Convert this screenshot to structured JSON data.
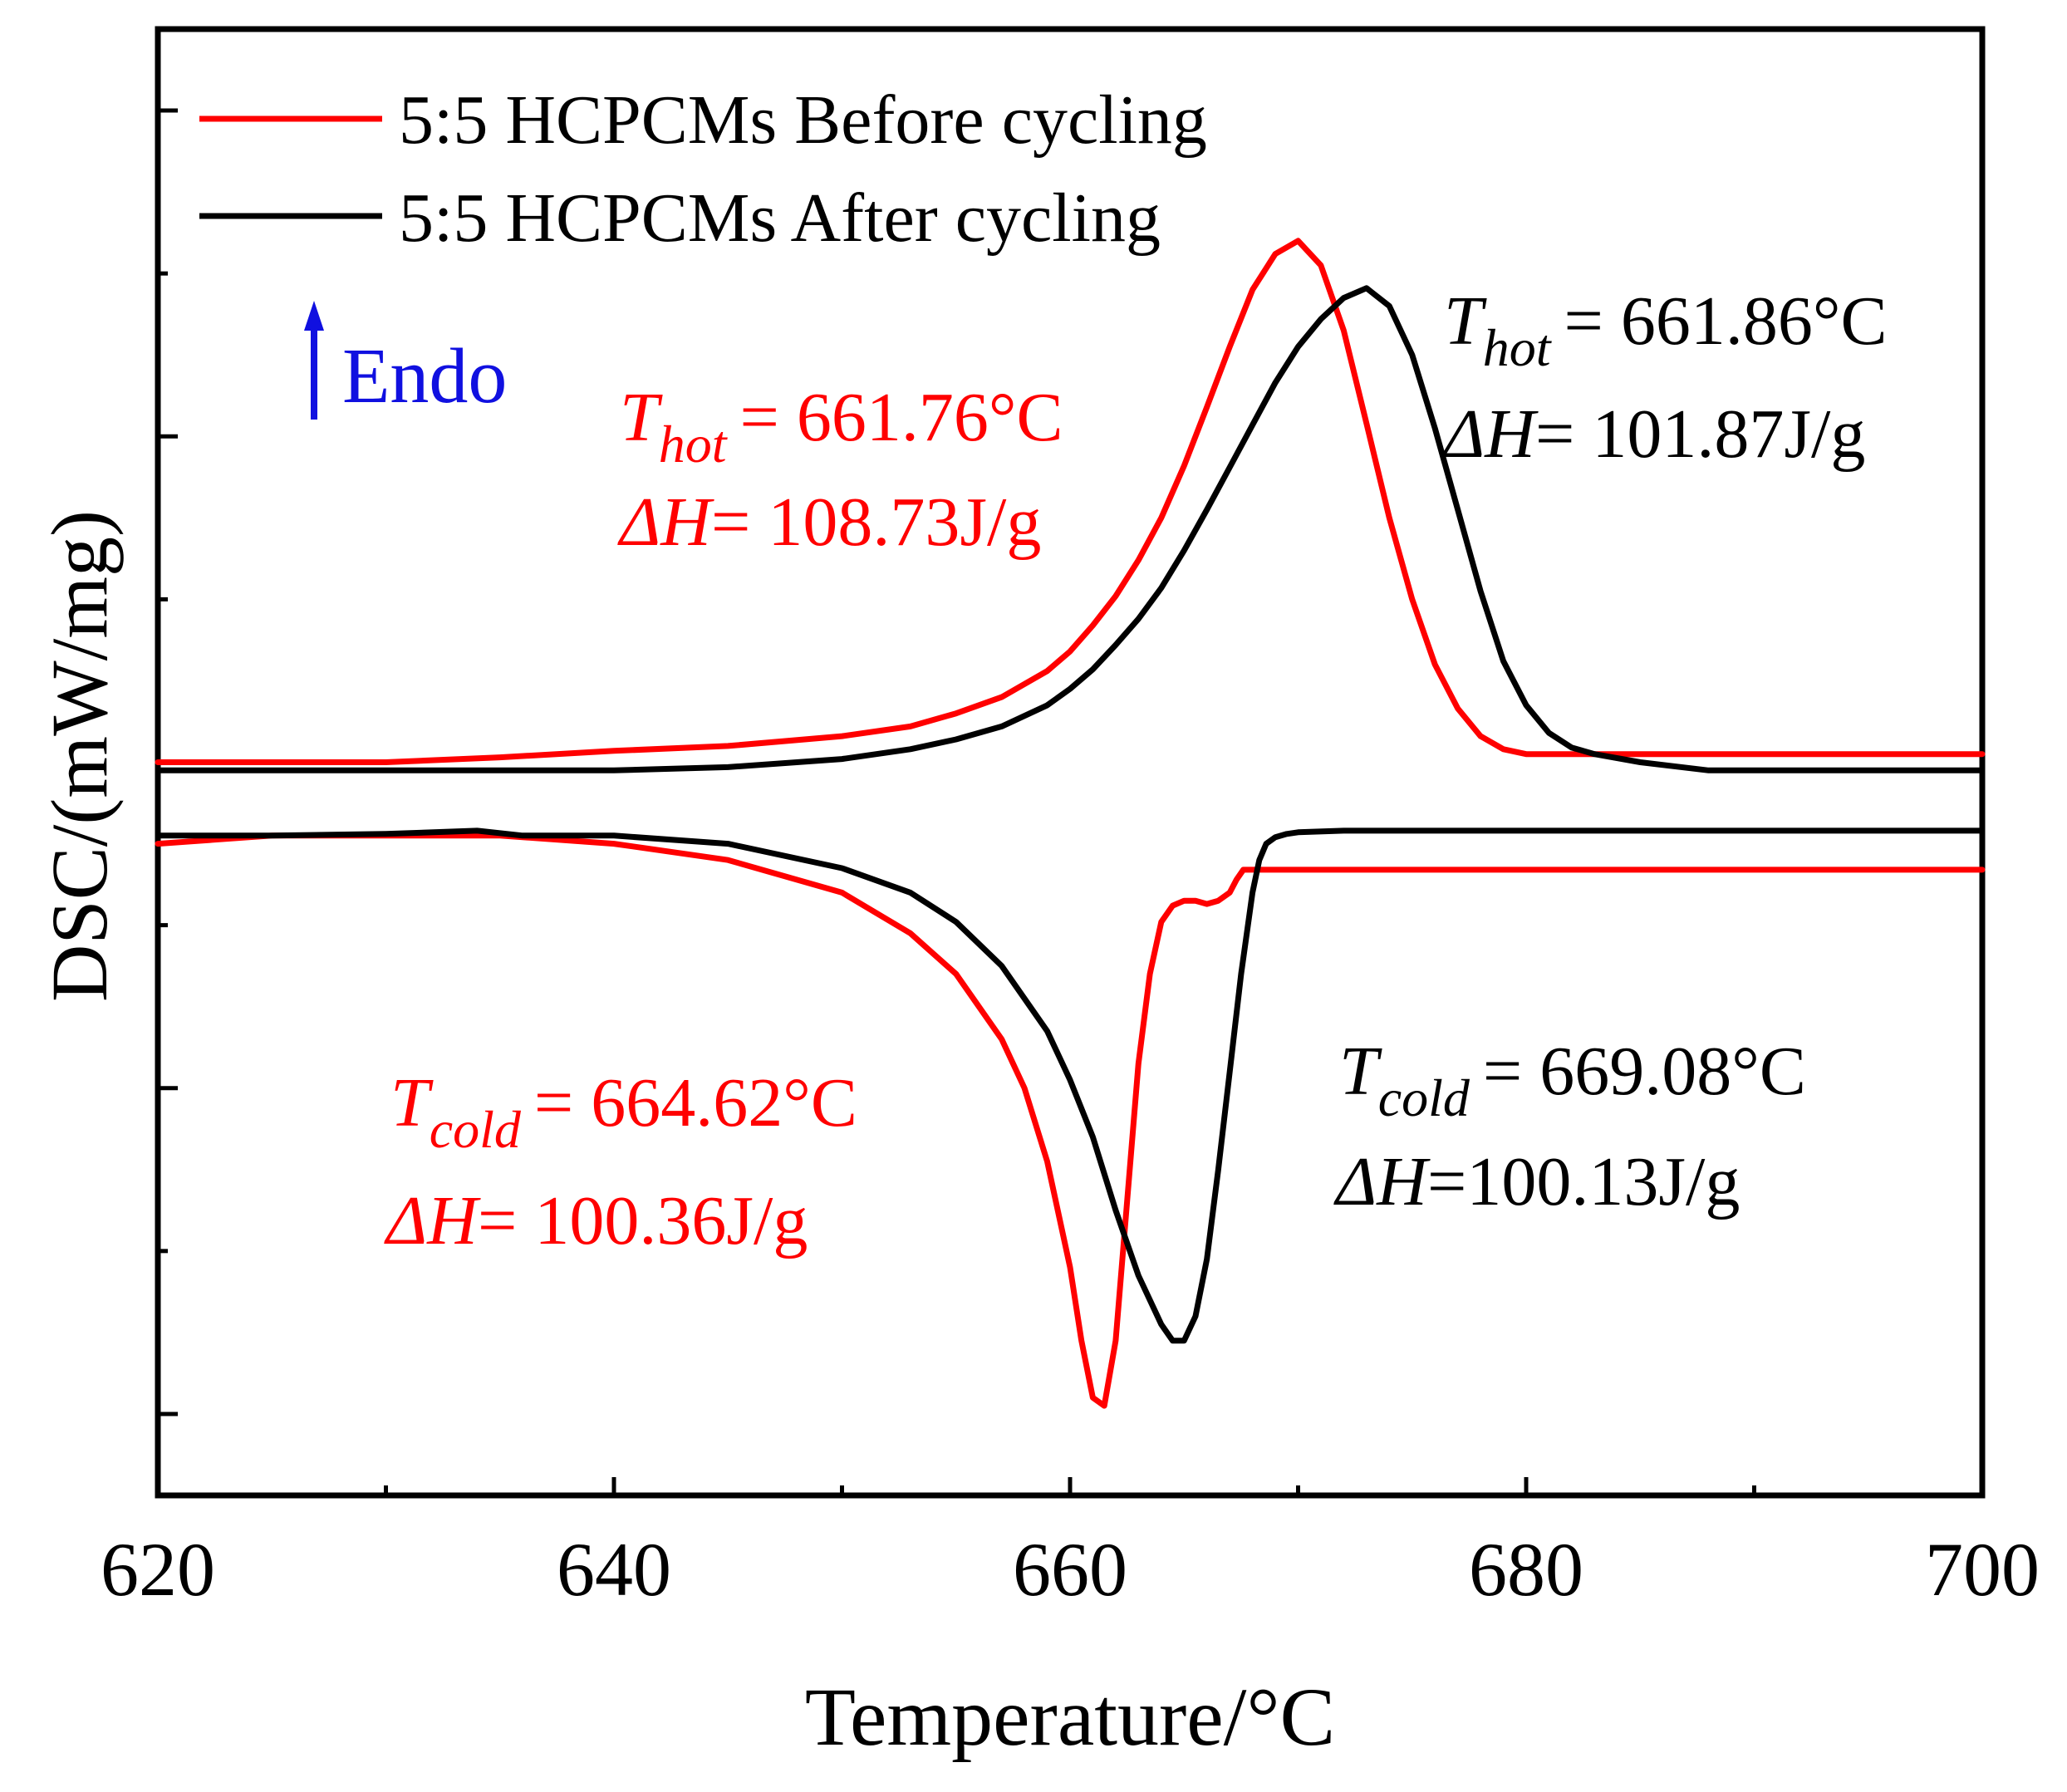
{
  "chart_data": {
    "type": "line",
    "title": "",
    "xlabel": "Temperature/°C",
    "ylabel": "DSC/(mW/mg)",
    "xlim": [
      620,
      700
    ],
    "ylim": [
      -4.5,
      4.5
    ],
    "x_ticks": [
      620,
      640,
      660,
      680,
      700
    ],
    "x_tick_labels": [
      "620",
      "640",
      "660",
      "680",
      "700"
    ],
    "y_tick_labels_shown": false,
    "grid": false,
    "legend_position": "top-left",
    "direction_note": {
      "arrow": "up",
      "label": "Endo",
      "color": "#1010e0"
    },
    "series": [
      {
        "name": "5:5 HCPCMs Before cycling",
        "color": "#ff0000",
        "segment": "heating",
        "x": [
          620,
          630,
          635,
          640,
          645,
          650,
          653,
          655,
          657,
          659,
          660,
          661,
          662,
          663,
          664,
          665,
          666,
          667,
          668,
          669,
          670,
          671,
          672,
          673,
          674,
          675,
          676,
          677,
          678,
          679,
          680,
          682,
          685,
          690,
          700
        ],
        "y": [
          0.0,
          0.0,
          0.03,
          0.07,
          0.1,
          0.16,
          0.22,
          0.3,
          0.4,
          0.56,
          0.68,
          0.84,
          1.02,
          1.24,
          1.5,
          1.82,
          2.18,
          2.55,
          2.9,
          3.12,
          3.2,
          3.05,
          2.65,
          2.08,
          1.5,
          1.0,
          0.6,
          0.33,
          0.16,
          0.08,
          0.05,
          0.05,
          0.05,
          0.05,
          0.05
        ]
      },
      {
        "name": "5:5 HCPCMs After cycling",
        "color": "#000000",
        "segment": "heating",
        "x": [
          620,
          630,
          640,
          645,
          650,
          653,
          655,
          657,
          659,
          660,
          661,
          662,
          663,
          664,
          665,
          666,
          667,
          668,
          669,
          670,
          671,
          672,
          673,
          674,
          675,
          676,
          677,
          678,
          679,
          680,
          681,
          682,
          683,
          685,
          688,
          690,
          700
        ],
        "y": [
          -0.05,
          -0.05,
          -0.05,
          -0.03,
          0.02,
          0.08,
          0.14,
          0.22,
          0.35,
          0.45,
          0.57,
          0.72,
          0.88,
          1.07,
          1.3,
          1.55,
          1.81,
          2.07,
          2.33,
          2.55,
          2.72,
          2.85,
          2.91,
          2.8,
          2.5,
          2.05,
          1.55,
          1.05,
          0.62,
          0.35,
          0.18,
          0.09,
          0.05,
          0.0,
          -0.05,
          -0.05,
          -0.05
        ]
      },
      {
        "name": "5:5 HCPCMs Before cycling",
        "color": "#ff0000",
        "segment": "cooling",
        "x": [
          620,
          625,
          630,
          635,
          640,
          645,
          650,
          653,
          655,
          657,
          658,
          659,
          660,
          660.5,
          661,
          661.5,
          662,
          662.5,
          663,
          663.5,
          664,
          664.5,
          665,
          665.5,
          666,
          666.5,
          667,
          667.3,
          667.6,
          668,
          670,
          680,
          700
        ],
        "y": [
          -0.5,
          -0.45,
          -0.45,
          -0.45,
          -0.5,
          -0.6,
          -0.8,
          -1.05,
          -1.3,
          -1.7,
          -2.0,
          -2.45,
          -3.1,
          -3.55,
          -3.9,
          -3.95,
          -3.55,
          -2.7,
          -1.85,
          -1.3,
          -0.98,
          -0.88,
          -0.85,
          -0.85,
          -0.87,
          -0.85,
          -0.8,
          -0.72,
          -0.66,
          -0.66,
          -0.66,
          -0.66,
          -0.66
        ]
      },
      {
        "name": "5:5 HCPCMs After cycling",
        "color": "#000000",
        "segment": "cooling",
        "x": [
          620,
          625,
          630,
          634,
          636,
          640,
          645,
          650,
          653,
          655,
          657,
          659,
          660,
          661,
          662,
          663,
          664,
          664.5,
          665,
          665.5,
          666,
          666.5,
          667,
          667.5,
          668,
          668.3,
          668.6,
          669,
          669.5,
          670,
          672,
          675,
          680,
          700
        ],
        "y": [
          -0.45,
          -0.45,
          -0.44,
          -0.42,
          -0.45,
          -0.45,
          -0.5,
          -0.65,
          -0.8,
          -0.98,
          -1.25,
          -1.65,
          -1.95,
          -2.3,
          -2.75,
          -3.15,
          -3.45,
          -3.55,
          -3.55,
          -3.4,
          -3.05,
          -2.5,
          -1.9,
          -1.3,
          -0.8,
          -0.6,
          -0.5,
          -0.46,
          -0.44,
          -0.43,
          -0.42,
          -0.42,
          -0.42,
          -0.42
        ]
      }
    ],
    "legend": [
      {
        "label": "5:5 HCPCMs Before cycling",
        "color": "#ff0000"
      },
      {
        "label": "5:5 HCPCMs After cycling",
        "color": "#000000"
      }
    ],
    "annotations": [
      {
        "symbol": "T",
        "subscript": "hot",
        "value": "= 661.76°C",
        "color": "#ff0000"
      },
      {
        "symbol": "ΔH",
        "value": "= 108.73J/g",
        "color": "#ff0000"
      },
      {
        "symbol": "T",
        "subscript": "hot",
        "value": "= 661.86°C",
        "color": "#000000"
      },
      {
        "symbol": "ΔH",
        "value": "= 101.87J/g",
        "color": "#000000"
      },
      {
        "symbol": "T",
        "subscript": "cold",
        "value": "= 664.62°C",
        "color": "#ff0000"
      },
      {
        "symbol": "ΔH",
        "value": "= 100.36J/g",
        "color": "#ff0000"
      },
      {
        "symbol": "T",
        "subscript": "cold",
        "value": "= 669.08°C",
        "color": "#000000"
      },
      {
        "symbol": "ΔH",
        "value": "=100.13J/g",
        "color": "#000000"
      }
    ]
  }
}
